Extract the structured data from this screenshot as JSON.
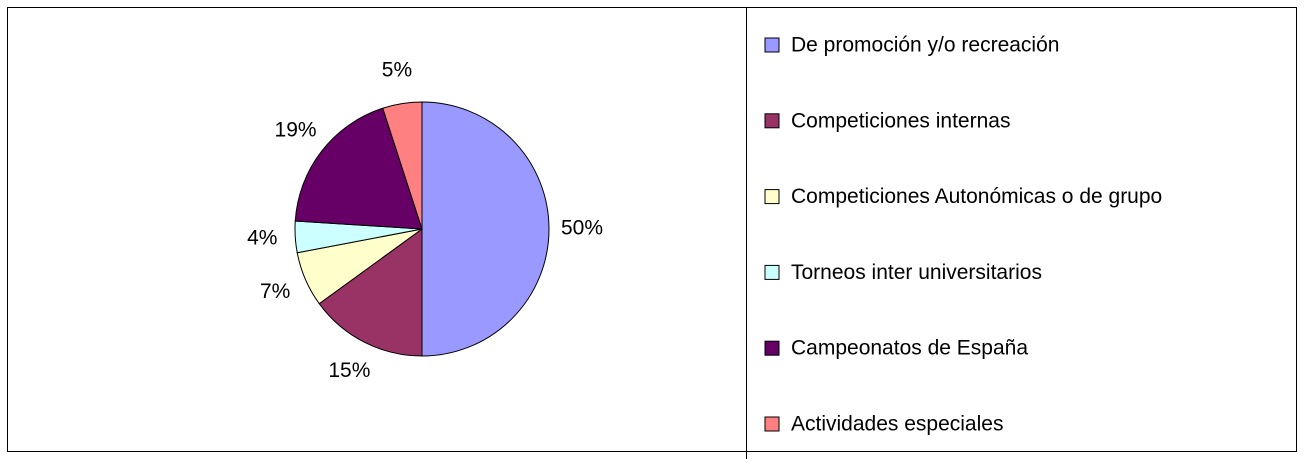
{
  "chart_data": {
    "type": "pie",
    "categories": [
      "De promoción y/o recreación",
      "Competiciones internas",
      "Competiciones Autonómicas o de grupo",
      "Torneos inter universitarios",
      "Campeonatos de España",
      "Actividades especiales"
    ],
    "values": [
      50,
      15,
      7,
      4,
      19,
      5
    ],
    "value_labels": [
      "50%",
      "15%",
      "7%",
      "4%",
      "19%",
      "5%"
    ],
    "colors": [
      "#9999ff",
      "#993366",
      "#ffffcc",
      "#ccffff",
      "#660066",
      "#ff8080"
    ],
    "legend": "right"
  }
}
